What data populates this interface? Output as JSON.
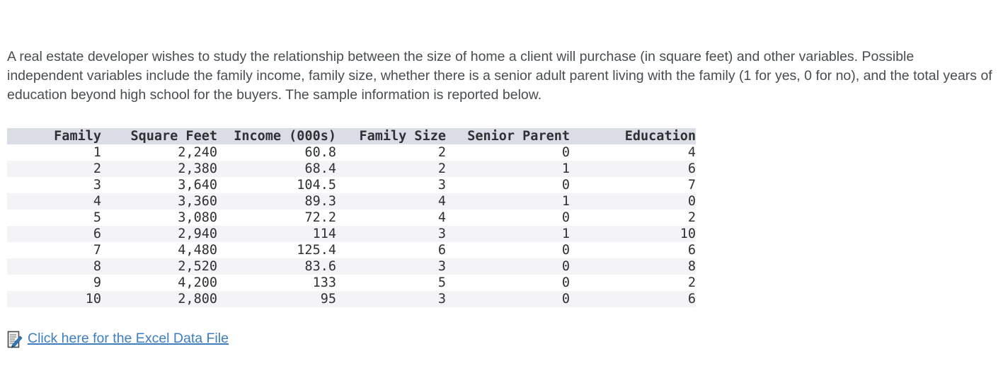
{
  "question": {
    "text": "A real estate developer wishes to study the relationship between the size of home a client will purchase (in square feet) and other variables. Possible independent variables include the family income, family size, whether there is a senior adult parent living with the family (1 for yes, 0 for no), and the total years of education beyond high school for the buyers. The sample information is reported below."
  },
  "table": {
    "headers": [
      "Family",
      "Square Feet",
      "Income (000s)",
      "Family Size",
      "Senior Parent",
      "Education"
    ],
    "rows": [
      [
        "1",
        "2,240",
        "60.8",
        "2",
        "0",
        "4"
      ],
      [
        "2",
        "2,380",
        "68.4",
        "2",
        "1",
        "6"
      ],
      [
        "3",
        "3,640",
        "104.5",
        "3",
        "0",
        "7"
      ],
      [
        "4",
        "3,360",
        "89.3",
        "4",
        "1",
        "0"
      ],
      [
        "5",
        "3,080",
        "72.2",
        "4",
        "0",
        "2"
      ],
      [
        "6",
        "2,940",
        "114",
        "3",
        "1",
        "10"
      ],
      [
        "7",
        "4,480",
        "125.4",
        "6",
        "0",
        "6"
      ],
      [
        "8",
        "2,520",
        "83.6",
        "3",
        "0",
        "8"
      ],
      [
        "9",
        "4,200",
        "133",
        "5",
        "0",
        "2"
      ],
      [
        "10",
        "2,800",
        "95",
        "3",
        "0",
        "6"
      ]
    ],
    "header_bg": "#dbdde6",
    "alt_row_bg": "#f4f4f7",
    "text_color": "#2e3133"
  },
  "excel_link": {
    "label": "Click here for the Excel Data File",
    "icon": "excel-file-icon",
    "color": "#3d7ebf"
  }
}
